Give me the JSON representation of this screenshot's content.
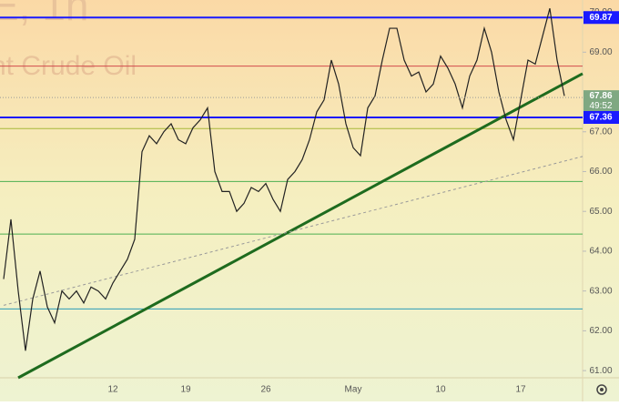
{
  "chart_data": {
    "type": "line",
    "watermark": [
      "E, 1h",
      "nt Crude Oil"
    ],
    "categories": [
      null,
      null,
      null,
      null,
      null,
      null,
      null,
      null,
      null,
      null,
      null,
      null,
      null,
      null,
      null,
      "12",
      null,
      null,
      null,
      null,
      null,
      null,
      null,
      null,
      null,
      "19",
      null,
      null,
      null,
      null,
      null,
      null,
      null,
      null,
      null,
      null,
      "26",
      null,
      null,
      null,
      null,
      null,
      null,
      null,
      null,
      null,
      null,
      null,
      "May",
      null,
      null,
      null,
      null,
      null,
      null,
      null,
      null,
      null,
      null,
      null,
      "10",
      null,
      null,
      null,
      null,
      null,
      null,
      null,
      null,
      null,
      null,
      "17",
      null,
      null,
      null,
      null,
      null,
      null
    ],
    "values": [
      63.3,
      64.8,
      63.0,
      61.5,
      62.8,
      63.5,
      62.6,
      62.2,
      63.0,
      62.8,
      63.0,
      62.7,
      63.1,
      63.0,
      62.8,
      63.2,
      63.5,
      63.8,
      64.3,
      66.5,
      66.9,
      66.7,
      67.0,
      67.2,
      66.8,
      66.7,
      67.1,
      67.3,
      67.6,
      66.0,
      65.5,
      65.5,
      65.0,
      65.2,
      65.6,
      65.5,
      65.7,
      65.3,
      65.0,
      65.8,
      66.0,
      66.3,
      66.8,
      67.5,
      67.8,
      68.8,
      68.2,
      67.2,
      66.6,
      66.4,
      67.6,
      67.9,
      68.8,
      69.6,
      69.6,
      68.8,
      68.4,
      68.5,
      68.0,
      68.2,
      68.9,
      68.6,
      68.2,
      67.6,
      68.4,
      68.8,
      69.6,
      69.0,
      68.0,
      67.3,
      66.8,
      67.8,
      68.8,
      68.7,
      69.4,
      70.1,
      68.8,
      67.9
    ],
    "color": "#222222",
    "ylim": [
      60.82,
      70.31
    ],
    "yticks": [
      {
        "value": 61,
        "label": "61.00"
      },
      {
        "value": 62,
        "label": "62.00"
      },
      {
        "value": 63,
        "label": "63.00"
      },
      {
        "value": 64,
        "label": "64.00"
      },
      {
        "value": 65,
        "label": "65.00"
      },
      {
        "value": 66,
        "label": "66.00"
      },
      {
        "value": 67,
        "label": "67.00"
      },
      {
        "value": 69,
        "label": "69.00"
      },
      {
        "value": 70,
        "label": "70.00"
      }
    ],
    "levels": [
      {
        "value": 69.87,
        "color": "#1a1aff",
        "width": 2,
        "label": "69.87"
      },
      {
        "value": 67.36,
        "color": "#1a1aff",
        "width": 2,
        "label": "67.36"
      },
      {
        "value": 68.65,
        "color": "#d24b4b",
        "width": 1
      },
      {
        "value": 67.08,
        "color": "#a8b83a",
        "width": 1
      },
      {
        "value": 65.75,
        "color": "#4caf50",
        "width": 1
      },
      {
        "value": 64.43,
        "color": "#4caf50",
        "width": 1
      },
      {
        "value": 62.55,
        "color": "#2a9bb8",
        "width": 1
      }
    ],
    "last_price": 67.86,
    "countdown": "49:52",
    "price_color": "#7fa882",
    "trendlines": [
      {
        "x0": 2,
        "y0": 60.82,
        "x1": 79.5,
        "y1": 68.46,
        "color": "#1e6b1e",
        "width": 3,
        "dashed": false
      },
      {
        "x0": 0,
        "y0": 62.64,
        "x1": 79.5,
        "y1": 66.38,
        "color": "#999999",
        "width": 1,
        "dashed": true
      }
    ]
  }
}
